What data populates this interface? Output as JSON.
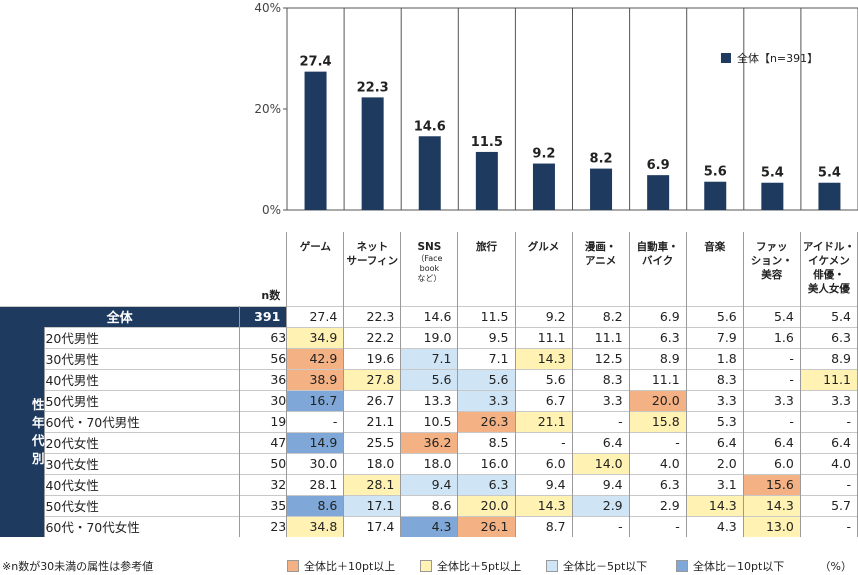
{
  "chart_data": {
    "type": "bar",
    "categories": [
      "ゲーム",
      "ネットサーフィン",
      "SNS（Facebookなど）",
      "旅行",
      "グルメ",
      "漫画・アニメ",
      "自動車・バイク",
      "音楽",
      "ファッション・美容",
      "アイドル・イケメン俳優・美人女優"
    ],
    "series": [
      {
        "name": "全体【n=391】",
        "values": [
          27.4,
          22.3,
          14.6,
          11.5,
          9.2,
          8.2,
          6.9,
          5.6,
          5.4,
          5.4
        ]
      }
    ],
    "ylim": [
      0,
      40
    ],
    "yticks": [
      "0%",
      "20%",
      "40%"
    ],
    "bar_color": "#1e3a5f"
  },
  "table": {
    "n_label": "n数",
    "headers": [
      {
        "lines": [
          "ゲーム"
        ],
        "sub": []
      },
      {
        "lines": [
          "ネット",
          "サーフィン"
        ],
        "sub": []
      },
      {
        "lines": [
          "SNS"
        ],
        "sub": [
          "（Face",
          "book",
          "など）"
        ]
      },
      {
        "lines": [
          "旅行"
        ],
        "sub": []
      },
      {
        "lines": [
          "グルメ"
        ],
        "sub": []
      },
      {
        "lines": [
          "漫画・",
          "アニメ"
        ],
        "sub": []
      },
      {
        "lines": [
          "自動車・",
          "バイク"
        ],
        "sub": []
      },
      {
        "lines": [
          "音楽"
        ],
        "sub": []
      },
      {
        "lines": [
          "ファッ",
          "ション・",
          "美容"
        ],
        "sub": []
      },
      {
        "lines": [
          "アイドル・",
          "イケメン",
          "俳優・",
          "美人女優"
        ],
        "sub": []
      }
    ],
    "total": {
      "label": "全体",
      "n": "391",
      "values": [
        "27.4",
        "22.3",
        "14.6",
        "11.5",
        "9.2",
        "8.2",
        "6.9",
        "5.6",
        "5.4",
        "5.4"
      ]
    },
    "group_label": [
      "性",
      "年",
      "代",
      "別"
    ],
    "rows": [
      {
        "label": "20代男性",
        "n": "63",
        "values": [
          "34.9",
          "22.2",
          "19.0",
          "9.5",
          "11.1",
          "11.1",
          "6.3",
          "7.9",
          "1.6",
          "6.3"
        ],
        "colors": [
          "p5",
          "",
          "",
          "",
          "",
          "",
          "",
          "",
          "",
          ""
        ]
      },
      {
        "label": "30代男性",
        "n": "56",
        "values": [
          "42.9",
          "19.6",
          "7.1",
          "7.1",
          "14.3",
          "12.5",
          "8.9",
          "1.8",
          "-",
          "8.9"
        ],
        "colors": [
          "pp10",
          "",
          "m5",
          "",
          "p5",
          "",
          "",
          "",
          "",
          ""
        ]
      },
      {
        "label": "40代男性",
        "n": "36",
        "values": [
          "38.9",
          "27.8",
          "5.6",
          "5.6",
          "5.6",
          "8.3",
          "11.1",
          "8.3",
          "-",
          "11.1"
        ],
        "colors": [
          "pp10",
          "p5",
          "m5",
          "m5",
          "",
          "",
          "",
          "",
          "",
          "p5"
        ]
      },
      {
        "label": "50代男性",
        "n": "30",
        "values": [
          "16.7",
          "26.7",
          "13.3",
          "3.3",
          "6.7",
          "3.3",
          "20.0",
          "3.3",
          "3.3",
          "3.3"
        ],
        "colors": [
          "m10",
          "",
          "",
          "m5",
          "",
          "",
          "pp10",
          "",
          "",
          ""
        ]
      },
      {
        "label": "60代・70代男性",
        "n": "19",
        "values": [
          "-",
          "21.1",
          "10.5",
          "26.3",
          "21.1",
          "-",
          "15.8",
          "5.3",
          "-",
          "-"
        ],
        "colors": [
          "",
          "",
          "",
          "pp10",
          "p5",
          "",
          "p5",
          "",
          "",
          ""
        ]
      },
      {
        "label": "20代女性",
        "n": "47",
        "values": [
          "14.9",
          "25.5",
          "36.2",
          "8.5",
          "-",
          "6.4",
          "-",
          "6.4",
          "6.4",
          "6.4"
        ],
        "colors": [
          "m10",
          "",
          "pp10",
          "",
          "",
          "",
          "",
          "",
          "",
          ""
        ]
      },
      {
        "label": "30代女性",
        "n": "50",
        "values": [
          "30.0",
          "18.0",
          "18.0",
          "16.0",
          "6.0",
          "14.0",
          "4.0",
          "2.0",
          "6.0",
          "4.0"
        ],
        "colors": [
          "",
          "",
          "",
          "",
          "",
          "p5",
          "",
          "",
          "",
          ""
        ]
      },
      {
        "label": "40代女性",
        "n": "32",
        "values": [
          "28.1",
          "28.1",
          "9.4",
          "6.3",
          "9.4",
          "9.4",
          "6.3",
          "3.1",
          "15.6",
          "-"
        ],
        "colors": [
          "",
          "p5",
          "m5",
          "m5",
          "",
          "",
          "",
          "",
          "pp10",
          ""
        ]
      },
      {
        "label": "50代女性",
        "n": "35",
        "values": [
          "8.6",
          "17.1",
          "8.6",
          "20.0",
          "14.3",
          "2.9",
          "2.9",
          "14.3",
          "14.3",
          "5.7"
        ],
        "colors": [
          "m10",
          "m5",
          "",
          "p5",
          "p5",
          "m5",
          "",
          "p5",
          "p5",
          ""
        ]
      },
      {
        "label": "60代・70代女性",
        "n": "23",
        "values": [
          "34.8",
          "17.4",
          "4.3",
          "26.1",
          "8.7",
          "-",
          "-",
          "4.3",
          "13.0",
          "-"
        ],
        "colors": [
          "p5",
          "",
          "m10",
          "pp10",
          "",
          "",
          "",
          "",
          "p5",
          ""
        ]
      }
    ]
  },
  "footer": {
    "note": "※n数が30未満の属性は参考値",
    "legend": [
      {
        "key": "pp10",
        "label": "全体比＋10pt以上",
        "color": "#f4b183"
      },
      {
        "key": "p5",
        "label": "全体比＋5pt以上",
        "color": "#fff2b3"
      },
      {
        "key": "m5",
        "label": "全体比－5pt以下",
        "color": "#cfe4f5"
      },
      {
        "key": "m10",
        "label": "全体比－10pt以下",
        "color": "#7fa8d8"
      }
    ],
    "unit": "（%）"
  }
}
